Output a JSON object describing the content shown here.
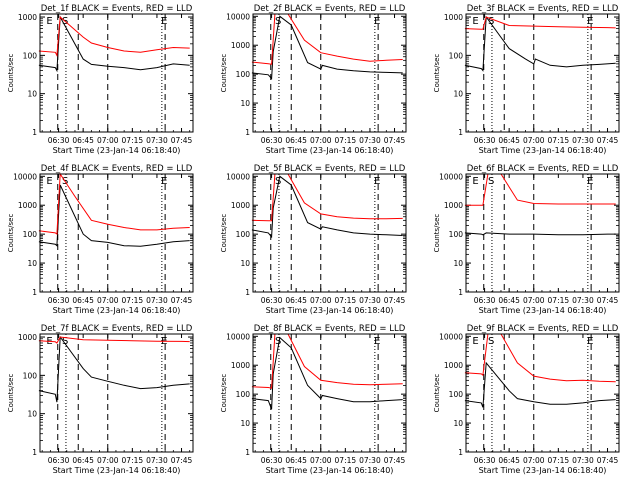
{
  "figure": {
    "xlabel": "Start Time (23-Jan-14 06:18:40)",
    "ylabel": "Counts/sec",
    "x_tick_labels": [
      "06:30",
      "06:45",
      "07:00",
      "07:15",
      "07:30",
      "07:45"
    ],
    "y_tick_labels": [
      "1",
      "10",
      "100",
      "1000",
      "10000"
    ],
    "colors": {
      "events": "#000000",
      "lld": "#ff0000"
    }
  },
  "chart_data": [
    {
      "type": "line",
      "title": "Det_1f BLACK = Events, RED = LLD",
      "xlabel": "Start Time (23-Jan-14 06:18:40)",
      "ylabel": "Counts/sec",
      "ylim": [
        1,
        1200
      ],
      "y_scale": "log",
      "x_ticks": [
        "06:30",
        "06:45",
        "07:00",
        "07:15",
        "07:30",
        "07:45"
      ],
      "markers": [
        "E",
        "S",
        "E"
      ],
      "series": [
        {
          "name": "BLACK = Events",
          "color": "#000000",
          "x": [
            "06:18",
            "06:28",
            "06:29",
            "06:31",
            "06:45",
            "06:50",
            "07:00",
            "07:10",
            "07:20",
            "07:30",
            "07:40",
            "07:50"
          ],
          "y": [
            55,
            48,
            40,
            1000,
            80,
            58,
            52,
            48,
            42,
            48,
            60,
            55
          ]
        },
        {
          "name": "RED = LLD",
          "color": "#ff0000",
          "x": [
            "06:18",
            "06:28",
            "06:29",
            "06:31",
            "06:45",
            "06:50",
            "07:00",
            "07:10",
            "07:20",
            "07:30",
            "07:40",
            "07:50"
          ],
          "y": [
            130,
            120,
            100,
            1000,
            300,
            210,
            160,
            130,
            120,
            140,
            160,
            155
          ]
        }
      ]
    },
    {
      "type": "line",
      "title": "Det_2f BLACK = Events, RED = LLD",
      "xlabel": "Start Time (23-Jan-14 06:18:40)",
      "ylabel": "Counts/sec",
      "ylim": [
        1,
        12000
      ],
      "y_scale": "log",
      "x_ticks": [
        "06:30",
        "06:45",
        "07:00",
        "07:15",
        "07:30",
        "07:45"
      ],
      "markers": [
        "S",
        "E"
      ],
      "series": [
        {
          "name": "BLACK = Events",
          "color": "#000000",
          "x": [
            "06:18",
            "06:28",
            "06:30",
            "06:31",
            "06:35",
            "06:42",
            "06:52",
            "07:00",
            "07:01",
            "07:10",
            "07:20",
            "07:30",
            "07:40",
            "07:50"
          ],
          "y": [
            110,
            95,
            70,
            600,
            10000,
            5000,
            250,
            150,
            200,
            150,
            130,
            120,
            115,
            110
          ]
        },
        {
          "name": "RED = LLD",
          "color": "#ff0000",
          "x": [
            "06:18",
            "06:28",
            "06:30",
            "06:32",
            "06:40",
            "06:50",
            "07:00",
            "07:10",
            "07:20",
            "07:30",
            "07:40",
            "07:50"
          ],
          "y": [
            260,
            230,
            220,
            12000,
            12000,
            1500,
            550,
            420,
            330,
            280,
            300,
            320
          ]
        }
      ]
    },
    {
      "type": "line",
      "title": "Det_3f BLACK = Events, RED = LLD",
      "xlabel": "Start Time (23-Jan-14 06:18:40)",
      "ylabel": "Counts/sec",
      "ylim": [
        1,
        1200
      ],
      "y_scale": "log",
      "x_ticks": [
        "06:30",
        "06:45",
        "07:00",
        "07:15",
        "07:30",
        "07:45"
      ],
      "markers": [
        "E",
        "S",
        "E"
      ],
      "series": [
        {
          "name": "BLACK = Events",
          "color": "#000000",
          "x": [
            "06:18",
            "06:28",
            "06:29",
            "06:31",
            "06:45",
            "06:55",
            "07:00",
            "07:01",
            "07:10",
            "07:20",
            "07:30",
            "07:40",
            "07:50"
          ],
          "y": [
            55,
            45,
            40,
            1000,
            150,
            80,
            60,
            80,
            55,
            50,
            55,
            58,
            62
          ]
        },
        {
          "name": "RED = LLD",
          "color": "#ff0000",
          "x": [
            "06:18",
            "06:28",
            "06:29",
            "06:31",
            "06:45",
            "07:00",
            "07:15",
            "07:30",
            "07:45",
            "07:50"
          ],
          "y": [
            500,
            480,
            480,
            1000,
            600,
            580,
            560,
            540,
            530,
            520
          ]
        }
      ]
    },
    {
      "type": "line",
      "title": "Det_4f BLACK = Events, RED = LLD",
      "xlabel": "Start Time (23-Jan-14 06:18:40)",
      "ylabel": "Counts/sec",
      "ylim": [
        1,
        12000
      ],
      "y_scale": "log",
      "x_ticks": [
        "06:30",
        "06:45",
        "07:00",
        "07:15",
        "07:30",
        "07:45"
      ],
      "markers": [
        "E",
        "S",
        "E"
      ],
      "series": [
        {
          "name": "BLACK = Events",
          "color": "#000000",
          "x": [
            "06:18",
            "06:28",
            "06:29",
            "06:31",
            "06:45",
            "06:50",
            "07:00",
            "07:10",
            "07:20",
            "07:30",
            "07:40",
            "07:50"
          ],
          "y": [
            55,
            45,
            40,
            5000,
            100,
            60,
            52,
            40,
            38,
            45,
            55,
            60
          ]
        },
        {
          "name": "RED = LLD",
          "color": "#ff0000",
          "x": [
            "06:18",
            "06:28",
            "06:29",
            "06:31",
            "06:40",
            "06:50",
            "07:00",
            "07:10",
            "07:20",
            "07:30",
            "07:40",
            "07:50"
          ],
          "y": [
            130,
            110,
            100,
            12000,
            2000,
            300,
            220,
            170,
            140,
            140,
            160,
            170
          ]
        }
      ]
    },
    {
      "type": "line",
      "title": "Det_5f BLACK = Events, RED = LLD",
      "xlabel": "Start Time (23-Jan-14 06:18:40)",
      "ylabel": "Counts/sec",
      "ylim": [
        1,
        12000
      ],
      "y_scale": "log",
      "x_ticks": [
        "06:30",
        "06:45",
        "07:00",
        "07:15",
        "07:30",
        "07:45"
      ],
      "markers": [
        "S",
        "E"
      ],
      "series": [
        {
          "name": "BLACK = Events",
          "color": "#000000",
          "x": [
            "06:18",
            "06:28",
            "06:30",
            "06:31",
            "06:35",
            "06:42",
            "06:52",
            "07:00",
            "07:01",
            "07:10",
            "07:20",
            "07:30",
            "07:40",
            "07:50"
          ],
          "y": [
            140,
            110,
            80,
            800,
            10000,
            5000,
            250,
            150,
            180,
            140,
            110,
            100,
            95,
            90
          ]
        },
        {
          "name": "RED = LLD",
          "color": "#ff0000",
          "x": [
            "06:18",
            "06:28",
            "06:30",
            "06:32",
            "06:40",
            "06:50",
            "07:00",
            "07:10",
            "07:20",
            "07:30",
            "07:40",
            "07:50"
          ],
          "y": [
            300,
            290,
            290,
            12000,
            12000,
            1200,
            500,
            400,
            360,
            340,
            340,
            350
          ]
        }
      ]
    },
    {
      "type": "line",
      "title": "Det_6f BLACK = Events, RED = LLD",
      "xlabel": "Start Time (23-Jan-14 06:18:40)",
      "ylabel": "Counts/sec",
      "ylim": [
        1,
        12000
      ],
      "y_scale": "log",
      "x_ticks": [
        "06:30",
        "06:45",
        "07:00",
        "07:15",
        "07:30",
        "07:45"
      ],
      "markers": [
        "E",
        "S",
        "E"
      ],
      "series": [
        {
          "name": "BLACK = Events",
          "color": "#000000",
          "x": [
            "06:18",
            "06:28",
            "06:29",
            "06:31",
            "06:45",
            "07:00",
            "07:15",
            "07:30",
            "07:45",
            "07:50"
          ],
          "y": [
            110,
            100,
            95,
            110,
            100,
            100,
            95,
            95,
            100,
            100
          ]
        },
        {
          "name": "RED = LLD",
          "color": "#ff0000",
          "x": [
            "06:18",
            "06:28",
            "06:29",
            "06:32",
            "06:40",
            "06:50",
            "07:00",
            "07:15",
            "07:30",
            "07:45",
            "07:50"
          ],
          "y": [
            1000,
            1000,
            1000,
            12000,
            12000,
            1500,
            1150,
            1100,
            1100,
            1100,
            1100
          ]
        }
      ]
    },
    {
      "type": "line",
      "title": "Det_7f BLACK = Events, RED = LLD",
      "xlabel": "Start Time (23-Jan-14 06:18:40)",
      "ylabel": "Counts/sec",
      "ylim": [
        1,
        1200
      ],
      "y_scale": "log",
      "x_ticks": [
        "06:30",
        "06:45",
        "07:00",
        "07:15",
        "07:30",
        "07:45"
      ],
      "markers": [
        "E",
        "S",
        "E"
      ],
      "series": [
        {
          "name": "BLACK = Events",
          "color": "#000000",
          "x": [
            "06:18",
            "06:28",
            "06:29",
            "06:31",
            "06:45",
            "06:50",
            "07:00",
            "07:10",
            "07:20",
            "07:30",
            "07:40",
            "07:50"
          ],
          "y": [
            40,
            32,
            20,
            1000,
            150,
            90,
            70,
            55,
            45,
            48,
            55,
            60
          ]
        },
        {
          "name": "RED = LLD",
          "color": "#ff0000",
          "x": [
            "06:18",
            "06:28",
            "06:29",
            "06:31",
            "06:45",
            "07:00",
            "07:15",
            "07:30",
            "07:45",
            "07:50"
          ],
          "y": [
            800,
            750,
            700,
            1000,
            850,
            820,
            800,
            780,
            770,
            760
          ]
        }
      ]
    },
    {
      "type": "line",
      "title": "Det_8f BLACK = Events, RED = LLD",
      "xlabel": "Start Time (23-Jan-14 06:18:40)",
      "ylabel": "Counts/sec",
      "ylim": [
        1,
        12000
      ],
      "y_scale": "log",
      "x_ticks": [
        "06:30",
        "06:45",
        "07:00",
        "07:15",
        "07:30",
        "07:45"
      ],
      "markers": [
        "S",
        "E"
      ],
      "series": [
        {
          "name": "BLACK = Events",
          "color": "#000000",
          "x": [
            "06:18",
            "06:28",
            "06:30",
            "06:31",
            "06:35",
            "06:42",
            "06:52",
            "07:00",
            "07:01",
            "07:10",
            "07:20",
            "07:30",
            "07:40",
            "07:50"
          ],
          "y": [
            70,
            60,
            30,
            500,
            9000,
            4000,
            200,
            70,
            90,
            70,
            55,
            55,
            60,
            65
          ]
        },
        {
          "name": "RED = LLD",
          "color": "#ff0000",
          "x": [
            "06:18",
            "06:28",
            "06:30",
            "06:32",
            "06:40",
            "06:50",
            "07:00",
            "07:10",
            "07:20",
            "07:30",
            "07:40",
            "07:50"
          ],
          "y": [
            180,
            170,
            160,
            12000,
            12000,
            900,
            300,
            250,
            220,
            210,
            220,
            230
          ]
        }
      ]
    },
    {
      "type": "line",
      "title": "Det_9f BLACK = Events, RED = LLD",
      "xlabel": "Start Time (23-Jan-14 06:18:40)",
      "ylabel": "Counts/sec",
      "ylim": [
        1,
        12000
      ],
      "y_scale": "log",
      "x_ticks": [
        "06:30",
        "06:45",
        "07:00",
        "07:15",
        "07:30",
        "07:45"
      ],
      "markers": [
        "E",
        "S",
        "E"
      ],
      "series": [
        {
          "name": "BLACK = Events",
          "color": "#000000",
          "x": [
            "06:18",
            "06:28",
            "06:29",
            "06:31",
            "06:45",
            "06:50",
            "07:00",
            "07:10",
            "07:20",
            "07:30",
            "07:40",
            "07:50"
          ],
          "y": [
            60,
            50,
            35,
            1200,
            130,
            70,
            55,
            45,
            45,
            50,
            60,
            65
          ]
        },
        {
          "name": "RED = LLD",
          "color": "#ff0000",
          "x": [
            "06:18",
            "06:28",
            "06:29",
            "06:32",
            "06:40",
            "06:50",
            "07:00",
            "07:10",
            "07:20",
            "07:30",
            "07:40",
            "07:50"
          ],
          "y": [
            550,
            500,
            450,
            12000,
            12000,
            1200,
            420,
            330,
            290,
            300,
            280,
            270
          ]
        }
      ]
    }
  ]
}
